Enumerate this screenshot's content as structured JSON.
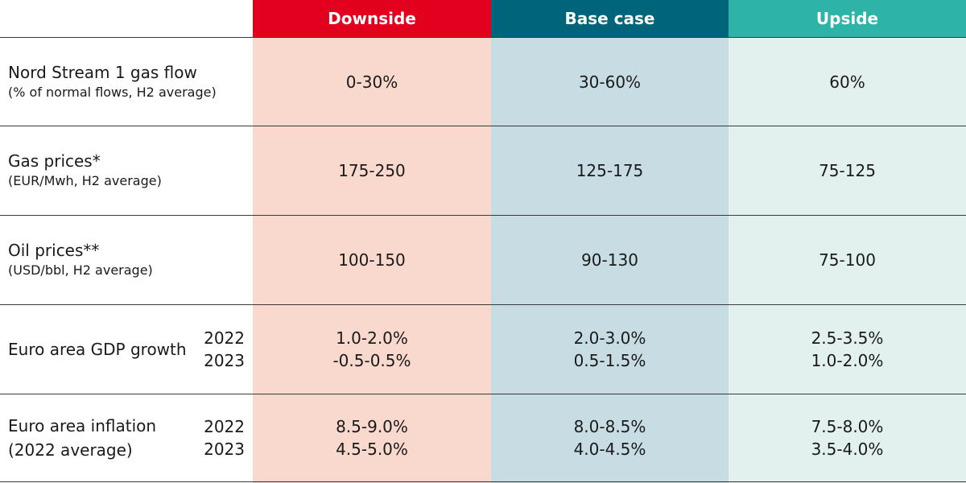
{
  "colors": {
    "downside_header": "#E3001E",
    "base_header": "#00657A",
    "upside_header": "#2DB3A8",
    "downside_bg": "#F9D8CD",
    "base_bg": "#C8DDE3",
    "upside_bg": "#E2F1EE"
  },
  "chart_data": {
    "type": "table",
    "columns": [
      "Downside",
      "Base case",
      "Upside"
    ],
    "rows": [
      {
        "label": "Nord Stream 1 gas flow",
        "sublabel": "(% of normal flows, H2 average)",
        "values": [
          "0-30%",
          "30-60%",
          "60%"
        ]
      },
      {
        "label": "Gas prices*",
        "sublabel": "(EUR/Mwh, H2 average)",
        "values": [
          "175-250",
          "125-175",
          "75-125"
        ]
      },
      {
        "label": "Oil prices**",
        "sublabel": "(USD/bbl, H2 average)",
        "values": [
          "100-150",
          "90-130",
          "75-100"
        ]
      },
      {
        "label": "Euro area GDP growth",
        "years": [
          "2022",
          "2023"
        ],
        "values": [
          [
            "1.0-2.0%",
            "-0.5-0.5%"
          ],
          [
            "2.0-3.0%",
            "0.5-1.5%"
          ],
          [
            "2.5-3.5%",
            "1.0-2.0%"
          ]
        ]
      },
      {
        "label": "Euro area inflation",
        "label2": "(2022 average)",
        "years": [
          "2022",
          "2023"
        ],
        "values": [
          [
            "8.5-9.0%",
            "4.5-5.0%"
          ],
          [
            "8.0-8.5%",
            "4.0-4.5%"
          ],
          [
            "7.5-8.0%",
            "3.5-4.0%"
          ]
        ]
      }
    ]
  }
}
